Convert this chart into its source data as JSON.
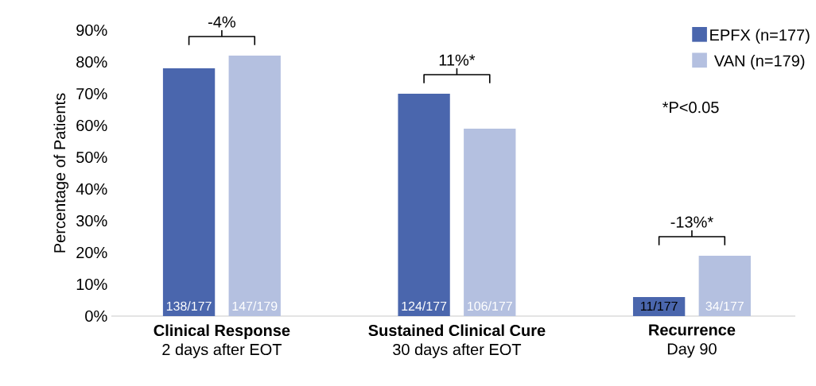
{
  "chart_data": {
    "type": "bar",
    "categories": [
      "**Clinical Response** 2 days after EOT",
      "**Sustained Clinical Cure** 30 days after EOT",
      "**Recurrence** Day 90"
    ],
    "series": [
      {
        "name": "EPFX (n=177)",
        "color": "#4a66ad",
        "values": [
          78,
          70,
          6
        ],
        "value_labels": [
          "138/177",
          "124/177",
          "11/177"
        ]
      },
      {
        "name": "VAN (n=179)",
        "color": "#b4c0e0",
        "values": [
          82,
          59,
          19
        ],
        "value_labels": [
          "147/179",
          "106/177",
          "34/177"
        ]
      }
    ],
    "ylabel": "Percentage of Patients",
    "ylim": [
      0,
      90
    ],
    "yticks": [
      {
        "value": 0,
        "label": "0%"
      },
      {
        "value": 10,
        "label": "10%"
      },
      {
        "value": 20,
        "label": "20%"
      },
      {
        "value": 30,
        "label": "30%"
      },
      {
        "value": 40,
        "label": "40%"
      },
      {
        "value": 50,
        "label": "50%"
      },
      {
        "value": 60,
        "label": "60%"
      },
      {
        "value": 70,
        "label": "70%"
      },
      {
        "value": 80,
        "label": "80%"
      },
      {
        "value": 90,
        "label": "90%"
      }
    ],
    "legend": "top right",
    "annotations": [
      "-4%",
      "11%*",
      "-13%*",
      "*P<0.05"
    ]
  }
}
